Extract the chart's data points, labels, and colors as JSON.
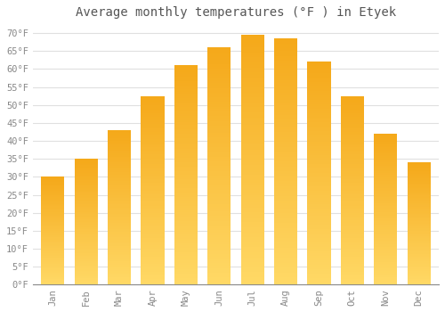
{
  "title": "Average monthly temperatures (°F ) in Etyek",
  "months": [
    "Jan",
    "Feb",
    "Mar",
    "Apr",
    "May",
    "Jun",
    "Jul",
    "Aug",
    "Sep",
    "Oct",
    "Nov",
    "Dec"
  ],
  "values": [
    30,
    35,
    43,
    52.5,
    61,
    66,
    69.5,
    68.5,
    62,
    52.5,
    42,
    34
  ],
  "bar_color_top": "#F5A800",
  "bar_color_bottom": "#FFD966",
  "ylim": [
    0,
    72
  ],
  "yticks": [
    0,
    5,
    10,
    15,
    20,
    25,
    30,
    35,
    40,
    45,
    50,
    55,
    60,
    65,
    70
  ],
  "ytick_labels": [
    "0°F",
    "5°F",
    "10°F",
    "15°F",
    "20°F",
    "25°F",
    "30°F",
    "35°F",
    "40°F",
    "45°F",
    "50°F",
    "55°F",
    "60°F",
    "65°F",
    "70°F"
  ],
  "background_color": "#FFFFFF",
  "grid_color": "#E0E0E0",
  "title_fontsize": 10,
  "tick_fontsize": 7.5,
  "tick_color": "#888888",
  "font_family": "monospace",
  "bar_width": 0.7
}
